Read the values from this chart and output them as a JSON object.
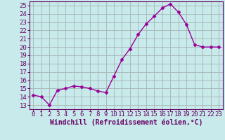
{
  "x": [
    0,
    1,
    2,
    3,
    4,
    5,
    6,
    7,
    8,
    9,
    10,
    11,
    12,
    13,
    14,
    15,
    16,
    17,
    18,
    19,
    20,
    21,
    22,
    23
  ],
  "y": [
    14.2,
    14.0,
    13.0,
    14.8,
    15.0,
    15.3,
    15.2,
    15.0,
    14.7,
    14.5,
    16.5,
    18.5,
    19.8,
    21.5,
    22.8,
    23.7,
    24.7,
    25.2,
    24.2,
    22.7,
    20.3,
    20.0,
    20.0,
    20.0
  ],
  "line_color": "#990099",
  "marker": "D",
  "marker_size": 2.5,
  "bg_color": "#c8eaea",
  "grid_color": "#aabbbb",
  "xlabel": "Windchill (Refroidissement éolien,°C)",
  "xlabel_color": "#660066",
  "tick_color": "#660066",
  "ylim": [
    12.5,
    25.5
  ],
  "yticks": [
    13,
    14,
    15,
    16,
    17,
    18,
    19,
    20,
    21,
    22,
    23,
    24,
    25
  ],
  "xlim": [
    -0.5,
    23.5
  ],
  "xticks": [
    0,
    1,
    2,
    3,
    4,
    5,
    6,
    7,
    8,
    9,
    10,
    11,
    12,
    13,
    14,
    15,
    16,
    17,
    18,
    19,
    20,
    21,
    22,
    23
  ],
  "xtick_labels": [
    "0",
    "1",
    "2",
    "3",
    "4",
    "5",
    "6",
    "7",
    "8",
    "9",
    "10",
    "11",
    "12",
    "13",
    "14",
    "15",
    "16",
    "17",
    "18",
    "19",
    "20",
    "21",
    "22",
    "23"
  ],
  "font_size": 6.5,
  "label_font_size": 7
}
